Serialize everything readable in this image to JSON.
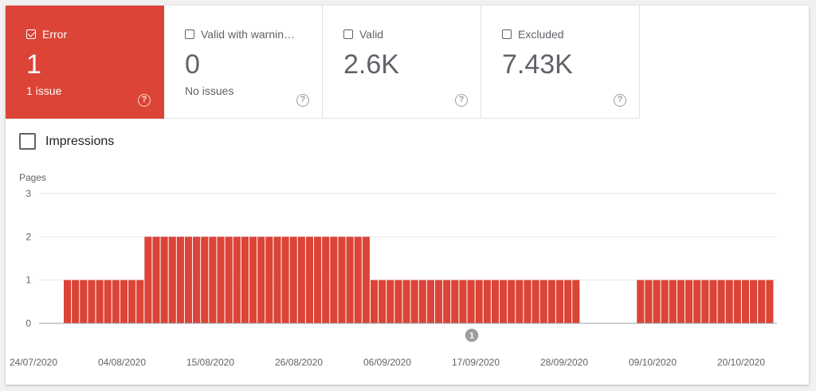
{
  "tiles": [
    {
      "label": "Error",
      "value": "1",
      "sub": "1 issue",
      "checked": true
    },
    {
      "label": "Valid with warnin…",
      "value": "0",
      "sub": "No issues",
      "checked": false
    },
    {
      "label": "Valid",
      "value": "2.6K",
      "sub": "",
      "checked": false
    },
    {
      "label": "Excluded",
      "value": "7.43K",
      "sub": "",
      "checked": false
    }
  ],
  "impressions": {
    "label": "Impressions",
    "checked": false
  },
  "help_glyph": "?",
  "colors": {
    "error": "#db4437",
    "grid": "#e8eaed",
    "text": "#5f6368"
  },
  "chart_data": {
    "type": "bar",
    "ylabel": "Pages",
    "ylim": [
      0,
      3
    ],
    "yticks": [
      0,
      1,
      2,
      3
    ],
    "x_tick_labels": [
      "24/07/2020",
      "04/08/2020",
      "15/08/2020",
      "26/08/2020",
      "06/09/2020",
      "17/09/2020",
      "28/09/2020",
      "09/10/2020",
      "20/10/2020"
    ],
    "series": [
      {
        "values": [
          1,
          1,
          1,
          1,
          1,
          1,
          1,
          1,
          1,
          1,
          2,
          2,
          2,
          2,
          2,
          2,
          2,
          2,
          2,
          2,
          2,
          2,
          2,
          2,
          2,
          2,
          2,
          2,
          2,
          2,
          2,
          2,
          2,
          2,
          2,
          2,
          2,
          2,
          1,
          1,
          1,
          1,
          1,
          1,
          1,
          1,
          1,
          1,
          1,
          1,
          1,
          1,
          1,
          1,
          1,
          1,
          1,
          1,
          1,
          1,
          1,
          1,
          1,
          1,
          0,
          0,
          0,
          0,
          0,
          0,
          0,
          1,
          1,
          1,
          1,
          1,
          1,
          1,
          1,
          1,
          1,
          1,
          1,
          1,
          1,
          1,
          1,
          1
        ]
      }
    ],
    "annotation": "1"
  }
}
